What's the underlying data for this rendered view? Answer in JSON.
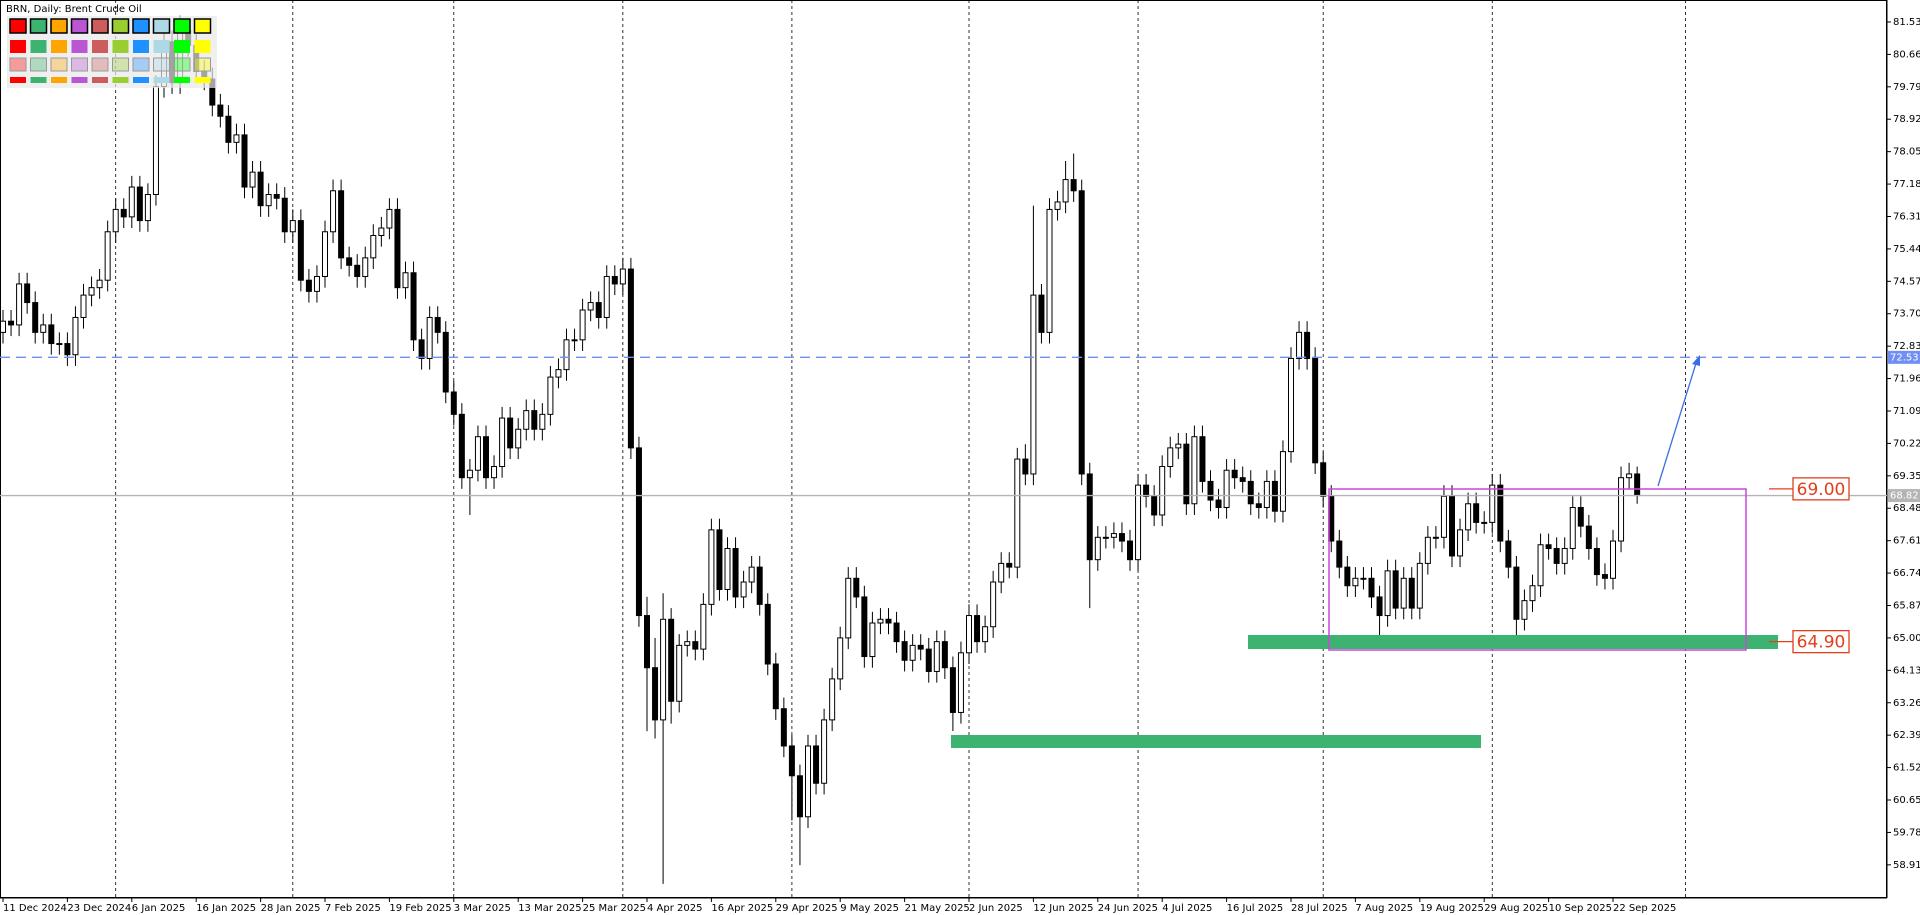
{
  "chart_data": {
    "type": "candlestick",
    "title": "BRN, Daily:  Brent Crude Oil",
    "categories": [
      "11 Dec 2024",
      null,
      null,
      null,
      null,
      null,
      null,
      null,
      "23 Dec 2024",
      null,
      null,
      null,
      null,
      null,
      null,
      null,
      "6 Jan 2025",
      null,
      null,
      null,
      null,
      null,
      null,
      null,
      "16 Jan 2025",
      null,
      null,
      null,
      null,
      null,
      null,
      null,
      "28 Jan 2025",
      null,
      null,
      null,
      null,
      null,
      null,
      null,
      "7 Feb 2025",
      null,
      null,
      null,
      null,
      null,
      null,
      null,
      "19 Feb 2025",
      null,
      null,
      null,
      null,
      null,
      null,
      null,
      "3 Mar 2025",
      null,
      null,
      null,
      null,
      null,
      null,
      null,
      "13 Mar 2025",
      null,
      null,
      null,
      null,
      null,
      null,
      null,
      "25 Mar 2025",
      null,
      null,
      null,
      null,
      null,
      null,
      null,
      "4 Apr 2025",
      null,
      null,
      null,
      null,
      null,
      null,
      null,
      "16 Apr 2025",
      null,
      null,
      null,
      null,
      null,
      null,
      null,
      "29 Apr 2025",
      null,
      null,
      null,
      null,
      null,
      null,
      null,
      "9 May 2025",
      null,
      null,
      null,
      null,
      null,
      null,
      null,
      "21 May 2025",
      null,
      null,
      null,
      null,
      null,
      null,
      null,
      "2 Jun 2025",
      null,
      null,
      null,
      null,
      null,
      null,
      null,
      "12 Jun 2025",
      null,
      null,
      null,
      null,
      null,
      null,
      null,
      "24 Jun 2025",
      null,
      null,
      null,
      null,
      null,
      null,
      null,
      "4 Jul 2025",
      null,
      null,
      null,
      null,
      null,
      null,
      null,
      "16 Jul 2025",
      null,
      null,
      null,
      null,
      null,
      null,
      null,
      "28 Jul 2025",
      null,
      null,
      null,
      null,
      null,
      null,
      null,
      "7 Aug 2025",
      null,
      null,
      null,
      null,
      null,
      null,
      null,
      "19 Aug 2025",
      null,
      null,
      null,
      null,
      null,
      null,
      null,
      "29 Aug 2025",
      null,
      null,
      null,
      null,
      null,
      null,
      null,
      "10 Sep 2025",
      null,
      null,
      null,
      null,
      null,
      null,
      null,
      "22 Sep 2025",
      null,
      null,
      null
    ],
    "open": [
      73.2,
      73.5,
      73.4,
      74.5,
      74.0,
      73.2,
      73.4,
      72.9,
      72.9,
      72.6,
      73.6,
      74.2,
      74.4,
      74.6,
      75.9,
      76.5,
      76.3,
      77.1,
      76.2,
      76.9,
      79.8,
      81.0,
      79.9,
      81.3,
      80.9,
      80.2,
      80.0,
      79.3,
      79.0,
      78.3,
      78.5,
      77.1,
      77.5,
      76.6,
      76.9,
      76.8,
      75.9,
      76.2,
      74.6,
      74.3,
      74.7,
      75.9,
      77.0,
      75.2,
      75.0,
      74.7,
      75.2,
      75.8,
      76.0,
      76.5,
      74.4,
      74.8,
      73.0,
      72.5,
      73.6,
      73.2,
      71.6,
      71.0,
      69.3,
      69.5,
      70.4,
      69.3,
      69.6,
      70.9,
      70.1,
      70.6,
      71.1,
      70.6,
      71.0,
      72.0,
      72.2,
      73.0,
      73.0,
      73.8,
      74.0,
      73.6,
      74.7,
      74.5,
      74.9,
      70.1,
      65.6,
      64.2,
      62.8,
      65.5,
      63.3,
      64.8,
      64.9,
      64.7,
      65.9,
      67.9,
      66.3,
      67.4,
      66.1,
      66.5,
      66.9,
      65.9,
      64.3,
      63.1,
      62.1,
      61.3,
      60.2,
      62.1,
      61.1,
      62.8,
      63.9,
      65.0,
      66.6,
      66.1,
      64.5,
      65.4,
      65.5,
      65.4,
      64.9,
      64.4,
      64.8,
      64.7,
      64.1,
      64.9,
      64.2,
      63.0,
      64.6,
      65.6,
      64.9,
      65.3,
      66.5,
      67.0,
      66.9,
      69.8,
      69.4,
      74.2,
      73.2,
      76.5,
      76.7,
      77.3,
      77.0,
      69.4,
      67.1,
      67.7,
      67.7,
      67.8,
      67.6,
      67.1,
      69.1,
      68.8,
      68.3,
      69.6,
      70.1,
      70.2,
      68.6,
      70.4,
      69.2,
      68.7,
      68.5,
      69.5,
      69.3,
      69.2,
      68.6,
      68.5,
      69.2,
      68.4,
      70.0,
      72.5,
      73.2,
      72.5,
      69.7,
      68.8,
      67.6,
      66.9,
      66.4,
      66.6,
      66.6,
      66.1,
      65.6,
      66.8,
      65.8,
      66.6,
      65.8,
      67.0,
      67.7,
      67.7,
      68.8,
      67.2,
      67.9,
      68.6,
      68.1,
      68.1,
      69.1,
      67.6,
      66.9,
      65.5,
      66.0,
      66.4,
      67.5,
      67.4,
      67.0,
      67.4,
      68.5,
      68.0,
      67.4,
      66.7,
      66.6,
      67.6,
      69.3,
      69.4
    ],
    "high": [
      73.8,
      73.8,
      74.8,
      74.8,
      74.3,
      73.7,
      73.7,
      73.2,
      73.2,
      73.9,
      74.5,
      74.7,
      74.9,
      76.2,
      76.8,
      76.8,
      77.4,
      77.4,
      77.2,
      80.1,
      81.3,
      81.3,
      81.7,
      81.6,
      81.2,
      80.5,
      80.3,
      79.6,
      79.3,
      78.8,
      78.8,
      77.8,
      77.8,
      77.2,
      77.2,
      77.1,
      76.5,
      76.5,
      74.9,
      75.0,
      76.2,
      77.3,
      77.3,
      75.5,
      75.3,
      75.5,
      76.1,
      76.3,
      76.8,
      76.8,
      75.1,
      75.1,
      73.3,
      73.9,
      73.9,
      73.5,
      71.9,
      71.3,
      69.8,
      70.7,
      70.7,
      69.9,
      71.2,
      71.2,
      70.9,
      71.4,
      71.4,
      71.3,
      72.3,
      72.5,
      73.3,
      73.3,
      74.1,
      74.3,
      74.3,
      75.0,
      75.0,
      75.2,
      75.2,
      70.4,
      66.1,
      65.0,
      66.2,
      65.8,
      65.1,
      65.2,
      65.2,
      66.2,
      68.2,
      68.2,
      67.7,
      67.7,
      66.8,
      67.2,
      67.2,
      66.2,
      64.6,
      63.4,
      62.4,
      61.6,
      62.4,
      62.4,
      63.1,
      64.2,
      65.3,
      66.9,
      66.9,
      66.4,
      65.7,
      65.8,
      65.8,
      65.7,
      65.2,
      65.1,
      65.1,
      65.0,
      65.2,
      65.2,
      64.5,
      64.9,
      65.9,
      65.9,
      65.6,
      66.8,
      67.3,
      67.3,
      70.1,
      70.2,
      76.6,
      74.5,
      76.8,
      77.0,
      77.8,
      78.0,
      77.3,
      69.7,
      68.0,
      68.0,
      68.1,
      68.1,
      67.9,
      69.4,
      69.4,
      69.1,
      69.9,
      70.4,
      70.5,
      70.5,
      70.7,
      70.7,
      69.5,
      69.0,
      69.8,
      69.8,
      69.6,
      69.5,
      68.9,
      69.5,
      69.5,
      70.3,
      72.8,
      73.5,
      73.5,
      72.8,
      70.0,
      69.1,
      67.9,
      67.2,
      66.9,
      66.9,
      66.9,
      66.4,
      67.1,
      67.1,
      66.9,
      66.9,
      67.3,
      68.0,
      68.0,
      69.1,
      69.1,
      68.2,
      68.9,
      68.9,
      68.4,
      69.4,
      69.4,
      67.9,
      67.2,
      66.3,
      66.7,
      67.8,
      67.8,
      67.7,
      67.7,
      68.8,
      68.8,
      68.3,
      67.7,
      67.0,
      67.9,
      69.6,
      69.7,
      69.6
    ],
    "low": [
      72.9,
      73.1,
      73.1,
      73.7,
      72.9,
      72.9,
      72.6,
      72.6,
      72.3,
      72.3,
      73.3,
      73.9,
      74.1,
      74.3,
      75.6,
      76.0,
      76.0,
      75.9,
      75.9,
      76.6,
      79.5,
      79.6,
      79.6,
      80.6,
      79.9,
      79.7,
      79.0,
      78.7,
      78.0,
      78.0,
      76.8,
      76.8,
      76.3,
      76.3,
      76.5,
      75.6,
      75.6,
      74.3,
      74.0,
      74.0,
      74.4,
      75.6,
      74.9,
      74.7,
      74.4,
      74.4,
      74.9,
      75.5,
      75.7,
      74.1,
      74.1,
      72.7,
      72.2,
      72.2,
      72.9,
      71.3,
      70.7,
      69.0,
      68.3,
      69.2,
      69.0,
      69.0,
      69.3,
      69.8,
      69.8,
      70.3,
      70.3,
      70.3,
      70.7,
      71.7,
      71.9,
      72.7,
      72.7,
      73.5,
      73.3,
      73.3,
      74.2,
      74.2,
      69.8,
      65.3,
      62.5,
      62.3,
      58.4,
      62.7,
      63.0,
      64.5,
      64.4,
      64.4,
      65.6,
      66.0,
      66.0,
      65.8,
      65.8,
      66.2,
      65.6,
      64.0,
      62.8,
      61.8,
      60.1,
      58.9,
      59.9,
      60.8,
      60.8,
      62.5,
      63.6,
      64.7,
      65.8,
      64.2,
      64.2,
      65.1,
      65.1,
      64.6,
      64.1,
      64.1,
      64.4,
      63.8,
      63.8,
      63.9,
      62.5,
      62.7,
      64.3,
      64.6,
      64.6,
      65.0,
      66.2,
      66.6,
      66.6,
      69.1,
      69.1,
      72.9,
      72.9,
      76.2,
      76.4,
      76.7,
      69.1,
      65.8,
      66.8,
      67.4,
      67.4,
      67.3,
      66.8,
      66.8,
      68.5,
      68.0,
      68.0,
      69.3,
      69.8,
      68.3,
      68.3,
      68.9,
      68.4,
      68.2,
      68.2,
      69.0,
      68.9,
      68.3,
      68.2,
      68.2,
      68.1,
      68.1,
      69.7,
      72.2,
      72.2,
      69.4,
      68.5,
      67.3,
      66.6,
      66.1,
      66.1,
      66.3,
      65.8,
      64.9,
      65.3,
      65.5,
      65.5,
      65.5,
      65.5,
      66.7,
      67.4,
      67.4,
      66.9,
      66.9,
      67.6,
      67.8,
      67.8,
      67.8,
      67.3,
      66.6,
      65.0,
      65.2,
      65.7,
      66.1,
      67.1,
      66.7,
      66.7,
      67.1,
      67.7,
      67.1,
      66.4,
      66.3,
      66.3,
      67.3,
      69.0,
      68.6
    ],
    "close": [
      73.5,
      73.4,
      74.5,
      74.0,
      73.2,
      73.4,
      72.9,
      72.9,
      72.6,
      73.6,
      74.2,
      74.4,
      74.6,
      75.9,
      76.5,
      76.3,
      77.1,
      76.2,
      76.9,
      79.8,
      81.0,
      79.9,
      81.3,
      80.9,
      80.2,
      80.0,
      79.3,
      79.0,
      78.3,
      78.5,
      77.1,
      77.5,
      76.6,
      76.9,
      76.8,
      75.9,
      76.2,
      74.6,
      74.3,
      74.7,
      75.9,
      77.0,
      75.2,
      75.0,
      74.7,
      75.2,
      75.8,
      76.0,
      76.5,
      74.4,
      74.8,
      73.0,
      72.5,
      73.6,
      73.2,
      71.6,
      71.0,
      69.3,
      69.5,
      70.4,
      69.3,
      69.6,
      70.9,
      70.1,
      70.6,
      71.1,
      70.6,
      71.0,
      72.0,
      72.2,
      73.0,
      73.0,
      73.8,
      74.0,
      73.6,
      74.7,
      74.5,
      74.9,
      70.1,
      65.6,
      64.2,
      62.8,
      65.5,
      63.3,
      64.8,
      64.9,
      64.7,
      65.9,
      67.9,
      66.3,
      67.4,
      66.1,
      66.5,
      66.9,
      65.9,
      64.3,
      63.1,
      62.1,
      61.3,
      60.2,
      62.1,
      61.1,
      62.8,
      63.9,
      65.0,
      66.6,
      66.1,
      64.5,
      65.4,
      65.5,
      65.4,
      64.9,
      64.4,
      64.8,
      64.7,
      64.1,
      64.9,
      64.2,
      63.0,
      64.6,
      65.6,
      64.9,
      65.3,
      66.5,
      67.0,
      66.9,
      69.8,
      69.4,
      74.2,
      73.2,
      76.5,
      76.7,
      77.3,
      77.0,
      69.4,
      67.1,
      67.7,
      67.7,
      67.8,
      67.6,
      67.1,
      69.1,
      68.8,
      68.3,
      69.6,
      70.1,
      70.2,
      68.6,
      70.4,
      69.2,
      68.7,
      68.5,
      69.5,
      69.3,
      69.2,
      68.6,
      68.5,
      69.2,
      68.4,
      70.0,
      72.5,
      73.2,
      72.5,
      69.7,
      68.8,
      67.6,
      66.9,
      66.4,
      66.6,
      66.6,
      66.1,
      65.6,
      66.8,
      65.8,
      66.6,
      65.8,
      67.0,
      67.7,
      67.7,
      68.8,
      67.2,
      67.9,
      68.6,
      68.1,
      68.1,
      69.1,
      67.6,
      66.9,
      65.5,
      66.0,
      66.4,
      67.5,
      67.4,
      67.0,
      67.4,
      68.5,
      68.0,
      67.4,
      66.7,
      66.6,
      67.6,
      69.3,
      69.4,
      68.82
    ],
    "up_color": "#ffffff",
    "down_color": "#000000",
    "wick_color": "#000000",
    "ylim": [
      58.02,
      82.12
    ],
    "yticks": [
      81.53,
      80.66,
      79.79,
      78.92,
      78.05,
      77.18,
      76.31,
      75.44,
      74.57,
      {
        "value": 73.7,
        "label": "73.70"
      },
      72.83,
      71.96,
      71.09,
      70.22,
      69.35,
      68.48,
      67.61,
      66.74,
      65.87,
      {
        "value": 65,
        "label": "65.00"
      },
      64.13,
      63.26,
      62.39,
      61.52,
      60.65,
      59.78,
      58.91
    ],
    "xgrid": [
      14,
      36,
      56,
      77,
      98,
      120,
      141,
      164,
      185,
      209
    ],
    "hlines": [
      {
        "value": 72.53,
        "color": "#6f8ff2",
        "style": "dashed"
      },
      {
        "value": 68.82,
        "color": "#b4b4b4",
        "style": "solid"
      }
    ],
    "levels": [
      {
        "value": 69,
        "label": "69.00",
        "color": "#e0401c"
      },
      {
        "value": 64.9,
        "label": "64.90",
        "color": "#e0401c"
      }
    ]
  }
}
